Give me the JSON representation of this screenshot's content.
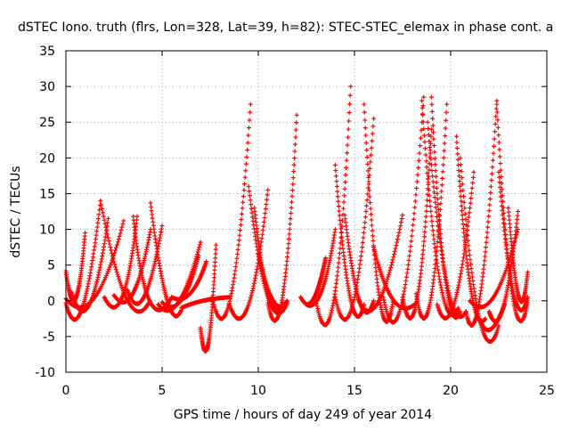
{
  "chart_data": {
    "type": "scatter",
    "title": "dSTEC Iono. truth (flrs, Lon=328, Lat=39, h=82): STEC-STEC_elemax in phase cont. a",
    "xlabel": "GPS time / hours of day 249 of year 2014",
    "ylabel": "dSTEC  / TECUs",
    "xlim": [
      0,
      25
    ],
    "ylim": [
      -10,
      35
    ],
    "xticks": [
      0,
      5,
      10,
      15,
      20,
      25
    ],
    "yticks": [
      -10,
      -5,
      0,
      5,
      10,
      15,
      20,
      25,
      30,
      35
    ],
    "grid": true,
    "marker": "+",
    "series_color": "#ff0000",
    "arcs": [
      {
        "x": [
          0.0,
          0.5,
          1.0
        ],
        "y": [
          4.2,
          0.3,
          9.5
        ]
      },
      {
        "x": [
          0.0,
          0.8,
          1.8
        ],
        "y": [
          -0.3,
          -1.0,
          14.0
        ]
      },
      {
        "x": [
          0.0,
          1.5,
          3.0
        ],
        "y": [
          0.3,
          0.5,
          11.2
        ]
      },
      {
        "x": [
          0.3,
          1.2,
          2.2
        ],
        "y": [
          1.2,
          -0.5,
          11.5
        ]
      },
      {
        "x": [
          1.8,
          3.2,
          4.3
        ],
        "y": [
          14.0,
          0.5,
          -0.3
        ]
      },
      {
        "x": [
          2.0,
          3.0,
          3.7
        ],
        "y": [
          0.5,
          0.5,
          11.8
        ]
      },
      {
        "x": [
          2.5,
          3.5,
          4.4
        ],
        "y": [
          0.8,
          1.0,
          10.0
        ]
      },
      {
        "x": [
          3.5,
          4.2,
          5.5
        ],
        "y": [
          11.8,
          0.0,
          0.5
        ]
      },
      {
        "x": [
          3.2,
          4.0,
          5.0
        ],
        "y": [
          1.5,
          0.5,
          10.5
        ]
      },
      {
        "x": [
          4.4,
          5.3,
          6.0
        ],
        "y": [
          13.7,
          0.2,
          -1.3
        ]
      },
      {
        "x": [
          4.8,
          5.8,
          7.0
        ],
        "y": [
          -0.5,
          -0.2,
          8.2
        ]
      },
      {
        "x": [
          5.0,
          6.0,
          6.9
        ],
        "y": [
          -0.2,
          0.0,
          6.3
        ]
      },
      {
        "x": [
          5.5,
          6.5,
          7.3
        ],
        "y": [
          0.5,
          1.0,
          5.5
        ]
      },
      {
        "x": [
          7.0,
          7.4,
          7.8
        ],
        "y": [
          -3.8,
          -6.0,
          7.8
        ]
      },
      {
        "x": [
          7.6,
          8.6,
          9.6
        ],
        "y": [
          0.5,
          1.0,
          27.5
        ]
      },
      {
        "x": [
          6.0,
          7.0,
          8.5
        ],
        "y": [
          -1.0,
          0.0,
          0.5
        ]
      },
      {
        "x": [
          8.5,
          9.5,
          10.5
        ],
        "y": [
          -0.5,
          -0.5,
          15.5
        ]
      },
      {
        "x": [
          9.5,
          10.5,
          11.5
        ],
        "y": [
          16.0,
          0.5,
          -0.3
        ]
      },
      {
        "x": [
          9.8,
          10.5,
          11.3
        ],
        "y": [
          13.0,
          0.8,
          -0.3
        ]
      },
      {
        "x": [
          10.5,
          11.3,
          12.0
        ],
        "y": [
          -0.3,
          0.8,
          26.0
        ]
      },
      {
        "x": [
          10.0,
          10.8,
          11.5
        ],
        "y": [
          6.5,
          0.0,
          0.0
        ]
      },
      {
        "x": [
          12.5,
          13.0,
          13.5
        ],
        "y": [
          -0.5,
          1.0,
          6.0
        ]
      },
      {
        "x": [
          12.2,
          13.2,
          14.0
        ],
        "y": [
          0.5,
          0.5,
          10.0
        ]
      },
      {
        "x": [
          13.0,
          14.0,
          14.8
        ],
        "y": [
          0.0,
          0.5,
          30.0
        ]
      },
      {
        "x": [
          14.0,
          14.8,
          15.5
        ],
        "y": [
          19.0,
          0.5,
          -0.5
        ]
      },
      {
        "x": [
          14.5,
          15.3,
          16.0
        ],
        "y": [
          12.0,
          -0.2,
          0.0
        ]
      },
      {
        "x": [
          14.0,
          15.0,
          16.0
        ],
        "y": [
          0.5,
          0.5,
          25.5
        ]
      },
      {
        "x": [
          15.5,
          16.3,
          17.0
        ],
        "y": [
          27.5,
          0.8,
          -0.2
        ]
      },
      {
        "x": [
          15.2,
          16.2,
          17.5
        ],
        "y": [
          0.2,
          0.0,
          12.0
        ]
      },
      {
        "x": [
          16.0,
          17.0,
          18.2
        ],
        "y": [
          7.5,
          0.0,
          -0.3
        ]
      },
      {
        "x": [
          16.5,
          17.5,
          18.6
        ],
        "y": [
          0.5,
          0.5,
          28.5
        ]
      },
      {
        "x": [
          17.5,
          18.3,
          19.0
        ],
        "y": [
          0.5,
          0.5,
          24.0
        ]
      },
      {
        "x": [
          18.5,
          19.4,
          20.4
        ],
        "y": [
          28.0,
          3.0,
          -1.0
        ]
      },
      {
        "x": [
          18.2,
          19.0,
          19.8
        ],
        "y": [
          1.0,
          0.8,
          27.5
        ]
      },
      {
        "x": [
          19.0,
          19.7,
          20.5
        ],
        "y": [
          28.5,
          3.0,
          -1.5
        ]
      },
      {
        "x": [
          18.8,
          19.8,
          20.8
        ],
        "y": [
          25.0,
          2.5,
          -1.5
        ]
      },
      {
        "x": [
          19.3,
          20.2,
          21.2
        ],
        "y": [
          -0.5,
          0.0,
          18.0
        ]
      },
      {
        "x": [
          20.3,
          21.0,
          21.8
        ],
        "y": [
          23.0,
          2.0,
          -2.5
        ]
      },
      {
        "x": [
          20.5,
          21.5,
          22.5
        ],
        "y": [
          20.0,
          -2.5,
          -3.5
        ]
      },
      {
        "x": [
          20.8,
          21.5,
          22.4
        ],
        "y": [
          -1.5,
          1.0,
          28.0
        ]
      },
      {
        "x": [
          21.5,
          22.0,
          22.8
        ],
        "y": [
          -2.5,
          -4.0,
          -0.5
        ]
      },
      {
        "x": [
          22.4,
          23.2,
          24.0
        ],
        "y": [
          27.5,
          1.0,
          -0.3
        ]
      },
      {
        "x": [
          22.0,
          22.7,
          23.5
        ],
        "y": [
          -1.5,
          -1.0,
          12.5
        ]
      },
      {
        "x": [
          22.5,
          23.3,
          24.0
        ],
        "y": [
          18.0,
          1.0,
          0.5
        ]
      },
      {
        "x": [
          23.0,
          23.6,
          24.0
        ],
        "y": [
          13.0,
          0.5,
          4.0
        ]
      },
      {
        "x": [
          21.0,
          22.2,
          23.5
        ],
        "y": [
          0.0,
          0.5,
          10.0
        ]
      }
    ]
  }
}
